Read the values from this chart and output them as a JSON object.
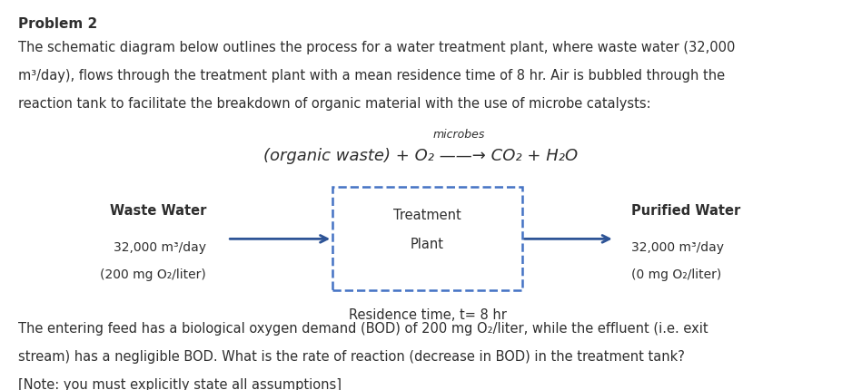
{
  "title": "Problem 2",
  "para1_line1": "The schematic diagram below outlines the process for a water treatment plant, where waste water (32,000",
  "para1_line2": "m³/day), flows through the treatment plant with a mean residence time of 8 hr. Air is bubbled through the",
  "para1_line3": "reaction tank to facilitate the breakdown of organic material with the use of microbe catalysts:",
  "reaction_above": "microbes",
  "reaction_main": "(organic waste) + O₂ ——→ CO₂ + H₂O",
  "waste_label": "Waste Water",
  "waste_line1": "32,000 m³/day",
  "waste_line2": "(200 mg O₂/liter)",
  "purified_label": "Purified Water",
  "purified_line1": "32,000 m³/day",
  "purified_line2": "(0 mg O₂/liter)",
  "box_label1": "Treatment",
  "box_label2": "Plant",
  "residence_label": "Residence time, t= 8 hr",
  "para2_line1": "The entering feed has a biological oxygen demand (BOD) of 200 mg O₂/liter, while the effluent (i.e. exit",
  "para2_line2": "stream) has a negligible BOD. What is the rate of reaction (decrease in BOD) in the treatment tank?",
  "para2_line3": "[Note: you must explicitly state all assumptions]",
  "bg_color": "#ffffff",
  "text_color": "#2e2e2e",
  "box_color": "#4472c4",
  "arrow_color": "#2e5496"
}
